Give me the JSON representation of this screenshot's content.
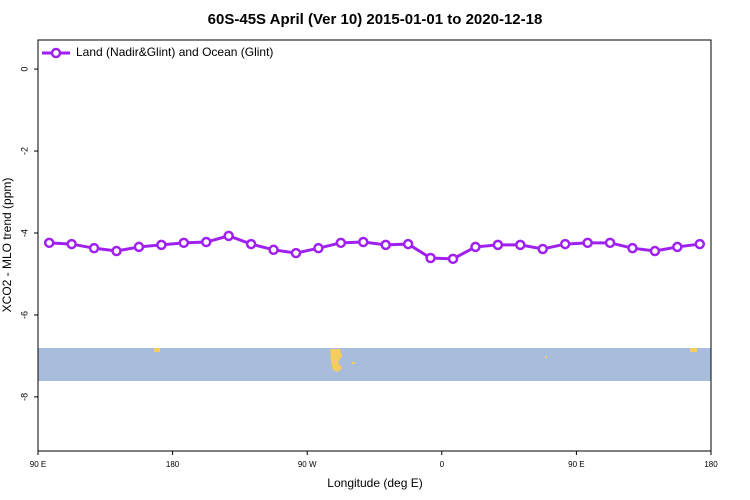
{
  "chart_data": {
    "type": "line",
    "title": "60S-45S April (Ver 10)   2015-01-01 to 2020-12-18",
    "x_label": "Longitude (deg E)",
    "y_label": "XCO2 - MLO trend (ppm)",
    "x": [
      97.5,
      112.5,
      127.5,
      142.5,
      157.5,
      172.5,
      187.5,
      202.5,
      217.5,
      232.5,
      247.5,
      262.5,
      277.5,
      292.5,
      307.5,
      322.5,
      337.5,
      352.5,
      367.5,
      382.5,
      397.5,
      412.5,
      427.5,
      442.5,
      457.5,
      472.5,
      487.5,
      502.5,
      517.5,
      532.5
    ],
    "series": [
      {
        "name": "Land (Nadir&Glint) and Ocean (Glint)",
        "color": "#a020f0",
        "values": [
          -4.24,
          -4.27,
          -4.37,
          -4.44,
          -4.34,
          -4.29,
          -4.24,
          -4.22,
          -4.07,
          -4.27,
          -4.41,
          -4.49,
          -4.37,
          -4.24,
          -4.22,
          -4.29,
          -4.27,
          -4.61,
          -4.63,
          -4.34,
          -4.29,
          -4.29,
          -4.39,
          -4.27,
          -4.24,
          -4.24,
          -4.37,
          -4.44,
          -4.34,
          -4.27
        ]
      }
    ],
    "xlim": [
      90,
      540
    ],
    "xticks": [
      {
        "value": 90,
        "label": "90 E"
      },
      180,
      {
        "value": 270,
        "label": "90 W"
      },
      {
        "value": 360,
        "label": "0"
      },
      {
        "value": 450,
        "label": "90 E"
      },
      {
        "value": 540,
        "label": "180"
      }
    ],
    "ylim": [
      -9.32,
      0.71
    ],
    "yticks": [
      0,
      -2,
      -4,
      -6,
      -8
    ],
    "legend": "top-left"
  }
}
